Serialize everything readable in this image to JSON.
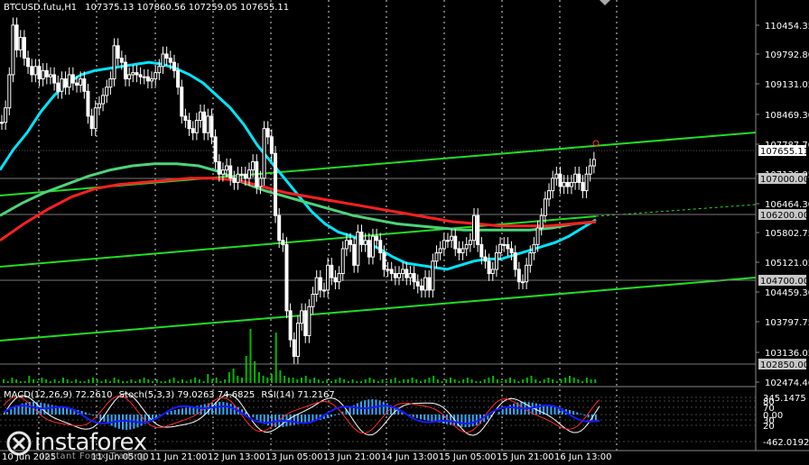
{
  "header": {
    "symbol": "BTCUSD.futu,H1",
    "ohlc": "107375.13 107860.56 107259.05 107655.11"
  },
  "indicators_header": {
    "macd": "MACD(12,26,9) 72.2610",
    "stoch": "Stoch(5,3,3) 79.0263 74.6825",
    "rsi": "RSI(14) 71.2167"
  },
  "logo": {
    "brand": "instaforex",
    "tagline": "Instant Forex Trading"
  },
  "colors": {
    "background": "#000000",
    "candle": "#ffffff",
    "ema_fast": "#00e5ff",
    "ema_mid": "#4ed37a",
    "ema_slow": "#ff2020",
    "trendline": "#22dd22",
    "volume": "#00bb00",
    "macd_hist": "#33aaff",
    "signal": "#1a1aff",
    "stoch_main": "#ffffff",
    "stoch_signal": "#ff2a2a",
    "rsi": "#1a1aff"
  },
  "chart_data": {
    "type": "candlestick",
    "title": "BTCUSD.futu,H1",
    "ylim": [
      102474.46,
      111200
    ],
    "price_ticks": [
      "110454.35",
      "109792.80",
      "109131.05",
      "108469.30",
      "107787.70",
      "107136.05",
      "106464.30",
      "105802.75",
      "105121.05",
      "104459.30",
      "103797.75",
      "103136.05",
      "102474.46"
    ],
    "price_boxes": [
      {
        "price": 107655.11,
        "label": "107655.11",
        "style": "current"
      },
      {
        "price": 107000,
        "label": "107000.00",
        "style": "level"
      },
      {
        "price": 106200,
        "label": "106200.00",
        "style": "level"
      },
      {
        "price": 104700,
        "label": "104700.00",
        "style": "level"
      },
      {
        "price": 102850,
        "label": "102850.00",
        "style": "level"
      }
    ],
    "time_labels": [
      "10 Jun 2025",
      "11 Jun 05:00",
      "11 Jun 21:00",
      "12 Jun 13:00",
      "13 Jun 05:00",
      "13 Jun 21:00",
      "14 Jun 13:00",
      "15 Jun 05:00",
      "15 Jun 21:00",
      "16 Jun 13:00"
    ],
    "closes": [
      108550,
      108900,
      109700,
      110900,
      110300,
      110600,
      110100,
      109900,
      109700,
      109900,
      109600,
      109800,
      109650,
      109700,
      109500,
      109300,
      109600,
      109400,
      109700,
      109500,
      109450,
      109600,
      109300,
      108700,
      108400,
      108900,
      109000,
      109200,
      109400,
      109600,
      110400,
      110100,
      110000,
      109600,
      109700,
      109750,
      109700,
      109650,
      109650,
      109550,
      109600,
      109750,
      109900,
      110200,
      110100,
      110000,
      109800,
      109400,
      108700,
      108600,
      108400,
      108300,
      108600,
      108800,
      108300,
      108700,
      108200,
      107600,
      107300,
      107400,
      107500,
      107200,
      107100,
      107300,
      107300,
      107200,
      107400,
      107600,
      107000,
      107200,
      108400,
      108200,
      107800,
      106300,
      105700,
      105600,
      104000,
      103300,
      102900,
      103700,
      104000,
      103400,
      104100,
      104400,
      104800,
      104500,
      104500,
      105100,
      104800,
      104700,
      104900,
      105500,
      105700,
      105600,
      105100,
      105900,
      105600,
      105700,
      105300,
      105800,
      105700,
      105400,
      105000,
      105000,
      104900,
      104800,
      104900,
      105000,
      104800,
      104900,
      104700,
      104600,
      104500,
      104800,
      104500,
      105200,
      105400,
      105500,
      105700,
      105700,
      105800,
      105500,
      105400,
      105500,
      105600,
      105700,
      106300,
      105600,
      105300,
      105200,
      104900,
      105000,
      105400,
      105600,
      105600,
      105500,
      105400,
      105000,
      104700,
      104700,
      105100,
      105400,
      105600,
      106000,
      106300,
      106700,
      106900,
      107200,
      107300,
      107000,
      107100,
      107000,
      107100,
      107300,
      107100,
      106900,
      107300,
      107500,
      107655
    ],
    "series": [
      {
        "name": "MA fast",
        "values": [
          107400,
          107900,
          108300,
          108800,
          109200,
          109500,
          109700,
          109800,
          109850,
          109900,
          109950,
          110000,
          109950,
          109850,
          109700,
          109500,
          109200,
          108900,
          108500,
          108000,
          107600,
          107200,
          106800,
          106400,
          106100,
          105900,
          105800,
          105650,
          105500,
          105300,
          105150,
          105100,
          105050,
          105000,
          105100,
          105200,
          105250,
          105250,
          105350,
          105450,
          105550,
          105650,
          105800,
          106000,
          106200
        ]
      },
      {
        "name": "MA mid",
        "values": [
          106300,
          106600,
          106850,
          107050,
          107250,
          107400,
          107500,
          107550,
          107550,
          107500,
          107350,
          107100,
          106900,
          106750,
          106600,
          106450,
          106300,
          106200,
          106100,
          106050,
          106000,
          105950,
          105950,
          105950,
          105950,
          106000,
          106100,
          106150
        ]
      },
      {
        "name": "MA slow",
        "values": [
          105700,
          106100,
          106450,
          106750,
          106950,
          107050,
          107100,
          107150,
          107200,
          107200,
          107150,
          107000,
          106850,
          106750,
          106650,
          106550,
          106450,
          106350,
          106250,
          106150,
          106100,
          106050,
          106050,
          106050,
          106100,
          106150
        ]
      }
    ],
    "volume": [
      2,
      1,
      3,
      2,
      1,
      1,
      4,
      2,
      1,
      3,
      2,
      1,
      2,
      1,
      3,
      2,
      1,
      2,
      1,
      1,
      2,
      3,
      2,
      1,
      2,
      1,
      3,
      2,
      1,
      1,
      2,
      1,
      2,
      3,
      2,
      1,
      2,
      1,
      1,
      2,
      3,
      1,
      2,
      1,
      2,
      3,
      2,
      1,
      5,
      2,
      3,
      1,
      2,
      6,
      8,
      4,
      3,
      15,
      30,
      12,
      6,
      4,
      3,
      5,
      28,
      7,
      4,
      3,
      3,
      2,
      3,
      4,
      2,
      3,
      2,
      1,
      2,
      1,
      2,
      3,
      2,
      1,
      2,
      1,
      1,
      2,
      3,
      2,
      1,
      2,
      1,
      2,
      3,
      1,
      2,
      2,
      3,
      2,
      1,
      2,
      3,
      4,
      2,
      1,
      2,
      3,
      2,
      1,
      2,
      3,
      2,
      1,
      1,
      2,
      3,
      4,
      2,
      1,
      2,
      3,
      2,
      1,
      2,
      3,
      4,
      2,
      1,
      2,
      3,
      2,
      1,
      2,
      3,
      4,
      3,
      2,
      1,
      3,
      2,
      2
    ]
  }
}
